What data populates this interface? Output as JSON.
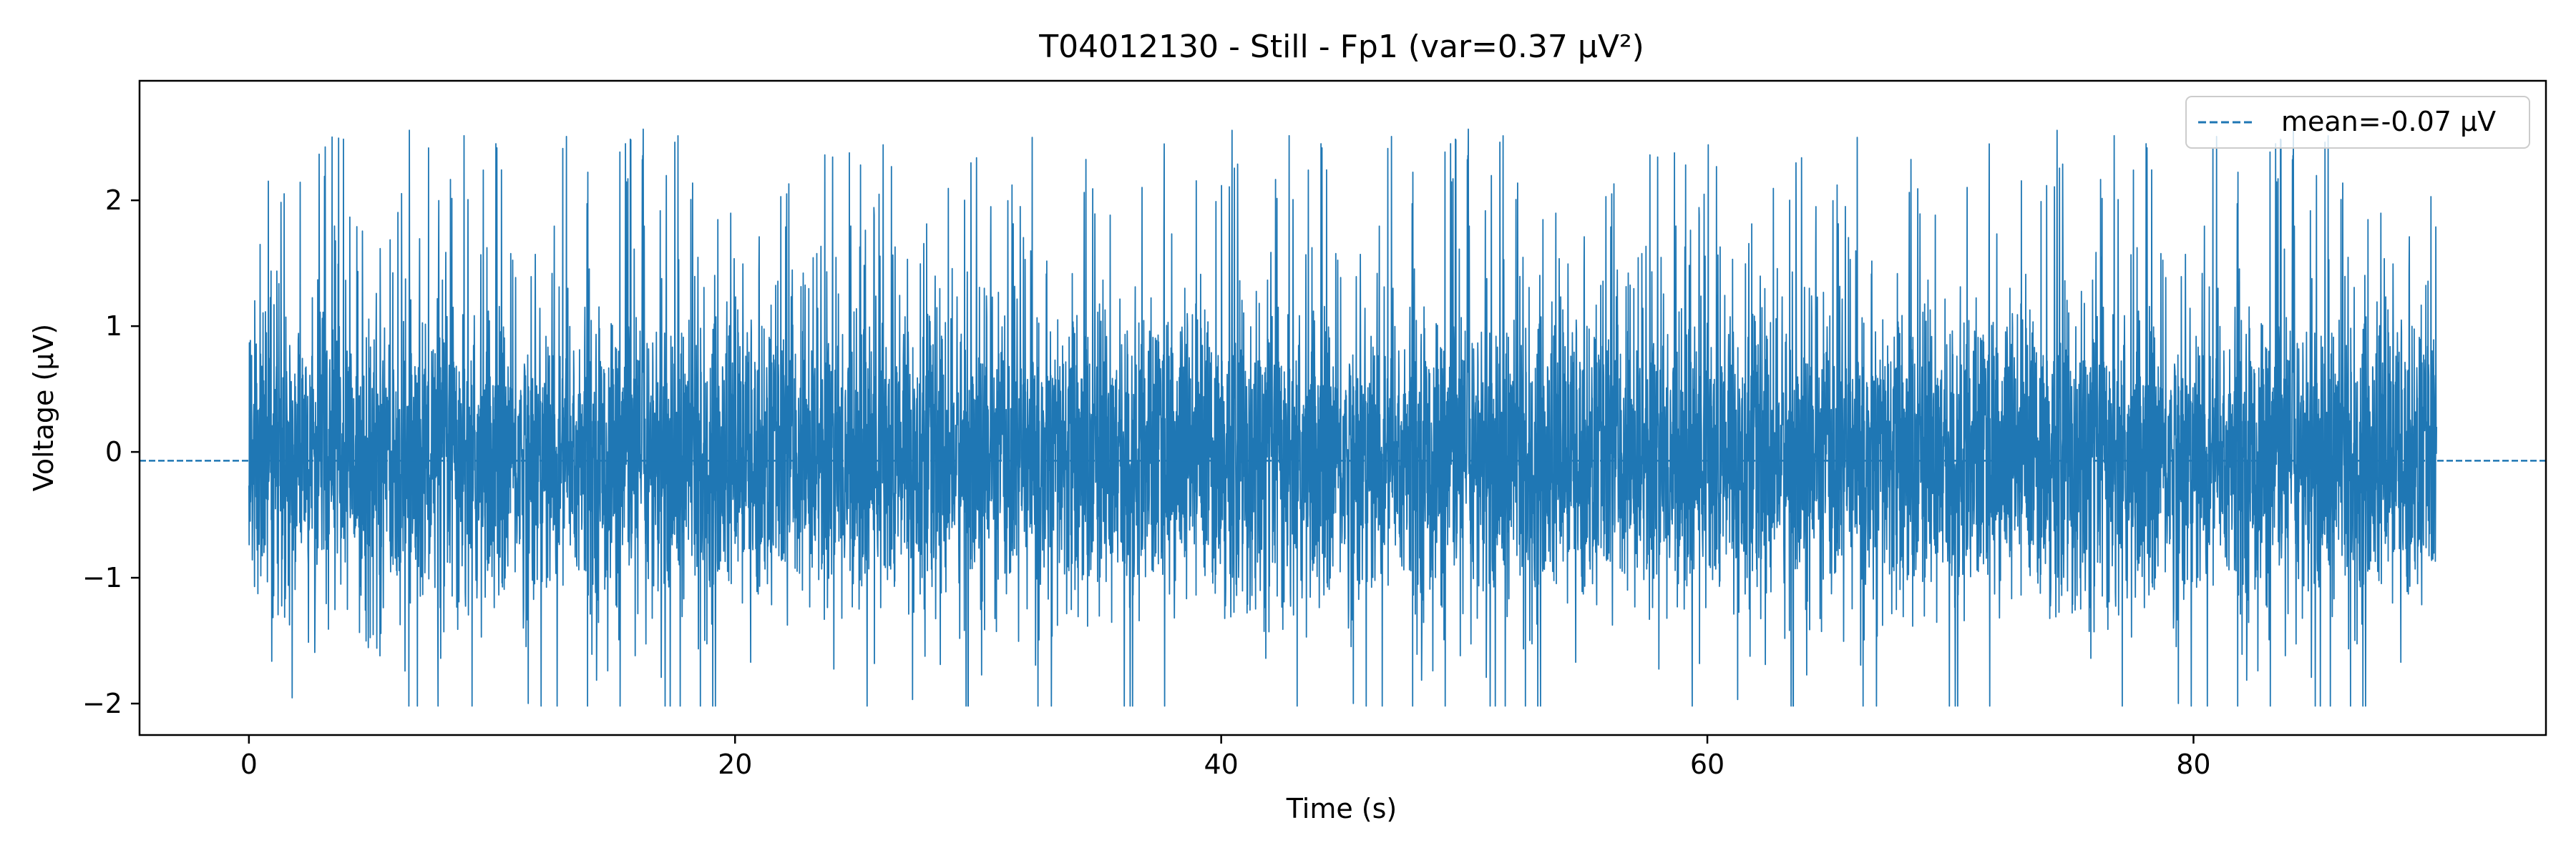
{
  "chart_data": {
    "type": "line",
    "title": "T04012130 - Still - Fp1 (var=0.37 µV²)",
    "xlabel": "Time (s)",
    "ylabel": "Voltage (µV)",
    "xlim": [
      -4.5,
      94.5
    ],
    "ylim": [
      -2.25,
      2.95
    ],
    "x_ticks": [
      0,
      20,
      40,
      60,
      80
    ],
    "x_tick_labels": [
      "0",
      "20",
      "40",
      "60",
      "80"
    ],
    "y_ticks": [
      -2,
      -1,
      0,
      1,
      2
    ],
    "y_tick_labels": [
      "−2",
      "−1",
      "0",
      "1",
      "2"
    ],
    "grid": false,
    "legend_position": "top-right",
    "series": [
      {
        "type": "line",
        "color": "#1f77b4",
        "x_range": [
          0,
          90
        ],
        "range": [
          -2.02,
          2.73
        ],
        "std": 0.61
      },
      {
        "name": "mean=-0.07 µV",
        "type": "hline",
        "style": "dashed",
        "color": "#1f77b4",
        "value": -0.07
      }
    ]
  }
}
